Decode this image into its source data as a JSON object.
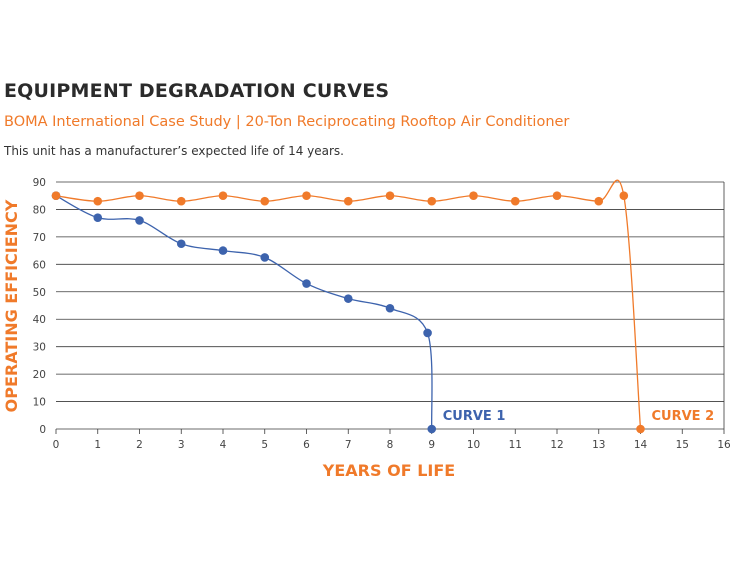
{
  "header": {
    "title": "EQUIPMENT DEGRADATION CURVES",
    "subtitle": "BOMA International Case Study | 20-Ton Reciprocating Rooftop Air Conditioner",
    "note": "This unit has a manufacturer’s expected life of 14 years."
  },
  "chart_data": {
    "type": "line",
    "xlabel": "YEARS OF LIFE",
    "ylabel": "OPERATING EFFICIENCY",
    "xlim": [
      0,
      16
    ],
    "ylim": [
      0,
      90
    ],
    "x_ticks": [
      "0",
      "1",
      "2",
      "3",
      "4",
      "5",
      "6",
      "7",
      "8",
      "9",
      "10",
      "11",
      "12",
      "13",
      "14",
      "15",
      "16"
    ],
    "y_ticks": [
      "0",
      "10",
      "20",
      "30",
      "40",
      "50",
      "60",
      "70",
      "80",
      "90"
    ],
    "grid": "horizontal",
    "series": [
      {
        "name": "CURVE 1",
        "color": "#3d63ad",
        "points": [
          {
            "x": 0,
            "y": 85
          },
          {
            "x": 1,
            "y": 77
          },
          {
            "x": 2,
            "y": 76
          },
          {
            "x": 3,
            "y": 67.5
          },
          {
            "x": 4,
            "y": 65
          },
          {
            "x": 5,
            "y": 62.5
          },
          {
            "x": 6,
            "y": 53
          },
          {
            "x": 7,
            "y": 47.5
          },
          {
            "x": 8,
            "y": 44
          },
          {
            "x": 8.9,
            "y": 35
          },
          {
            "x": 9,
            "y": 0
          }
        ]
      },
      {
        "name": "CURVE 2",
        "color": "#f07a2a",
        "points": [
          {
            "x": 0,
            "y": 85
          },
          {
            "x": 1,
            "y": 83
          },
          {
            "x": 2,
            "y": 85
          },
          {
            "x": 3,
            "y": 83
          },
          {
            "x": 4,
            "y": 85
          },
          {
            "x": 5,
            "y": 83
          },
          {
            "x": 6,
            "y": 85
          },
          {
            "x": 7,
            "y": 83
          },
          {
            "x": 8,
            "y": 85
          },
          {
            "x": 9,
            "y": 83
          },
          {
            "x": 10,
            "y": 85
          },
          {
            "x": 11,
            "y": 83
          },
          {
            "x": 12,
            "y": 85
          },
          {
            "x": 13,
            "y": 83
          },
          {
            "x": 13.6,
            "y": 85
          },
          {
            "x": 14,
            "y": 0
          }
        ]
      }
    ]
  }
}
